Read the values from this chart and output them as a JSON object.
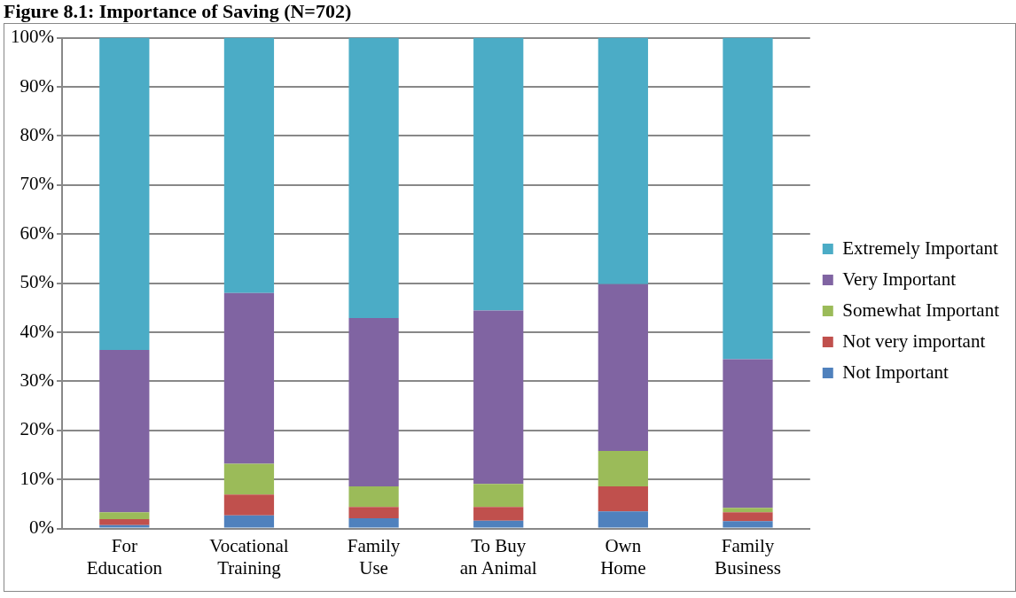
{
  "chart_data": {
    "type": "bar",
    "title": "Figure 8.1: Importance of Saving (N=702)",
    "stacked": true,
    "categories": [
      "For Education",
      "Vocational Training",
      "Family Use",
      "To Buy an Animal",
      "Own Home",
      "Family Business"
    ],
    "series": [
      {
        "name": "Not Important",
        "color": "#4f81bd",
        "values": [
          0.7,
          2.7,
          2.1,
          1.6,
          3.5,
          1.5
        ]
      },
      {
        "name": "Not very important",
        "color": "#c0504d",
        "values": [
          1.2,
          4.2,
          2.3,
          2.8,
          5.1,
          1.8
        ]
      },
      {
        "name": "Somewhat Important",
        "color": "#9bbb59",
        "values": [
          1.4,
          6.3,
          4.2,
          4.7,
          7.2,
          0.9
        ]
      },
      {
        "name": "Very Important",
        "color": "#8064a2",
        "values": [
          33.1,
          34.8,
          34.3,
          35.3,
          34.0,
          30.3
        ]
      },
      {
        "name": "Extremely Important",
        "color": "#4bacc6",
        "values": [
          63.6,
          52.0,
          57.1,
          55.6,
          50.2,
          65.5
        ]
      }
    ],
    "ylim": [
      0,
      100
    ],
    "yticks": [
      {
        "value": 0,
        "label": "0%"
      },
      {
        "value": 10,
        "label": "10%"
      },
      {
        "value": 20,
        "label": "20%"
      },
      {
        "value": 30,
        "label": "30%"
      },
      {
        "value": 40,
        "label": "40%"
      },
      {
        "value": 50,
        "label": "50%"
      },
      {
        "value": 60,
        "label": "60%"
      },
      {
        "value": 70,
        "label": "70%"
      },
      {
        "value": 80,
        "label": "80%"
      },
      {
        "value": 90,
        "label": "90%"
      },
      {
        "value": 100,
        "label": "100%"
      }
    ],
    "grid": "y",
    "legend": "right"
  }
}
